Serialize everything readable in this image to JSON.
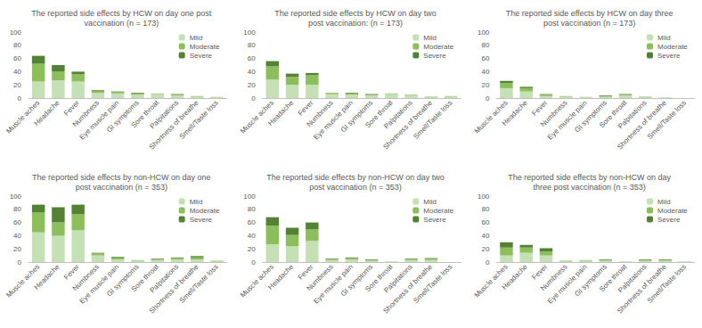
{
  "chart_data": [
    {
      "type": "bar",
      "title": "The reported side effects by HCW on day one post\nvaccination (n = 173)",
      "categories": [
        "Muscle aches",
        "Headache",
        "Fever",
        "Numbness",
        "Eye muscle pain",
        "GI symptoms",
        "Sore throat",
        "Palpitations",
        "Shortness of breathe",
        "Smell/Taste loss"
      ],
      "series": [
        {
          "name": "Mild",
          "color": "#c5e0b4",
          "values": [
            25,
            27,
            25,
            8,
            7,
            5,
            6,
            4,
            2,
            2
          ]
        },
        {
          "name": "Moderate",
          "color": "#8cbf5c",
          "values": [
            27,
            13,
            11,
            3,
            2,
            2,
            1,
            1,
            1,
            0
          ]
        },
        {
          "name": "Severe",
          "color": "#548235",
          "values": [
            12,
            10,
            4,
            1,
            1,
            1,
            0,
            1,
            0,
            0
          ]
        }
      ],
      "ylim": [
        0,
        100
      ],
      "yticks": [
        0,
        20,
        40,
        60,
        80,
        100
      ],
      "stacked": true,
      "grid": false,
      "legend": "upper right"
    },
    {
      "type": "bar",
      "title": "The reported side effects by HCW on day two\npost vaccination: (n = 173)",
      "categories": [
        "Muscle aches",
        "Headache",
        "Fever",
        "Numbness",
        "Eye muscle pain",
        "GI symptoms",
        "Sore throat",
        "Palpitations",
        "Shortness of breathe",
        "Smell/Taste loss"
      ],
      "series": [
        {
          "name": "Mild",
          "color": "#c5e0b4",
          "values": [
            28,
            20,
            20,
            6,
            5,
            4,
            6,
            4,
            1,
            2
          ]
        },
        {
          "name": "Moderate",
          "color": "#8cbf5c",
          "values": [
            20,
            12,
            15,
            2,
            2,
            1,
            1,
            1,
            1,
            1
          ]
        },
        {
          "name": "Severe",
          "color": "#548235",
          "values": [
            8,
            5,
            3,
            0,
            1,
            1,
            0,
            0,
            0,
            0
          ]
        }
      ],
      "ylim": [
        0,
        100
      ],
      "yticks": [
        0,
        20,
        40,
        60,
        80,
        100
      ],
      "stacked": true,
      "grid": false,
      "legend": "upper right"
    },
    {
      "type": "bar",
      "title": "The reported side effects by HCW on day three\npost vaccination (n = 173)",
      "categories": [
        "Muscle aches",
        "Headache",
        "Fever",
        "Numbness",
        "Eye muscle pain",
        "GI symptoms",
        "Sore throat",
        "Palpitations",
        "Shortness of breathe",
        "Smell/Taste loss"
      ],
      "series": [
        {
          "name": "Mild",
          "color": "#c5e0b4",
          "values": [
            15,
            10,
            3,
            2,
            2,
            2,
            4,
            1,
            1,
            0
          ]
        },
        {
          "name": "Moderate",
          "color": "#8cbf5c",
          "values": [
            8,
            5,
            2,
            1,
            0,
            1,
            1,
            1,
            0,
            0
          ]
        },
        {
          "name": "Severe",
          "color": "#548235",
          "values": [
            3,
            2,
            1,
            0,
            0,
            1,
            1,
            0,
            0,
            0
          ]
        }
      ],
      "ylim": [
        0,
        100
      ],
      "yticks": [
        0,
        20,
        40,
        60,
        80,
        100
      ],
      "stacked": true,
      "grid": false,
      "legend": "upper right"
    },
    {
      "type": "bar",
      "title": "The reported side effects by non-HCW on day one\npost vaccination (n = 353)",
      "categories": [
        "Muscle aches",
        "Headache",
        "Fever",
        "Numbness",
        "Eye muscle pain",
        "GI symptoms",
        "Sore throat",
        "Palpitations",
        "Shortness of breathe",
        "Smell/Taste loss"
      ],
      "series": [
        {
          "name": "Mild",
          "color": "#c5e0b4",
          "values": [
            45,
            40,
            48,
            10,
            4,
            2,
            3,
            4,
            4,
            1
          ]
        },
        {
          "name": "Moderate",
          "color": "#8cbf5c",
          "values": [
            30,
            20,
            25,
            3,
            3,
            1,
            1,
            2,
            3,
            1
          ]
        },
        {
          "name": "Severe",
          "color": "#548235",
          "values": [
            12,
            23,
            14,
            1,
            1,
            0,
            1,
            1,
            2,
            0
          ]
        }
      ],
      "ylim": [
        0,
        100
      ],
      "yticks": [
        0,
        20,
        40,
        60,
        80,
        100
      ],
      "stacked": true,
      "grid": false,
      "legend": "upper right"
    },
    {
      "type": "bar",
      "title": "The reported side effects by non-HCW on day two\npost vaccination (n = 353)",
      "categories": [
        "Muscle aches",
        "Headache",
        "Fever",
        "Numbness",
        "Eye muscle pain",
        "GI symptoms",
        "Sore throat",
        "Palpitations",
        "Shortness of breathe",
        "Smell/Taste loss"
      ],
      "series": [
        {
          "name": "Mild",
          "color": "#c5e0b4",
          "values": [
            27,
            24,
            32,
            3,
            4,
            2,
            1,
            3,
            3,
            0
          ]
        },
        {
          "name": "Moderate",
          "color": "#8cbf5c",
          "values": [
            28,
            17,
            18,
            1,
            2,
            1,
            0,
            1,
            2,
            0
          ]
        },
        {
          "name": "Severe",
          "color": "#548235",
          "values": [
            13,
            11,
            10,
            1,
            1,
            1,
            0,
            1,
            1,
            0
          ]
        }
      ],
      "ylim": [
        0,
        100
      ],
      "yticks": [
        0,
        20,
        40,
        60,
        80,
        100
      ],
      "stacked": true,
      "grid": false,
      "legend": "upper right"
    },
    {
      "type": "bar",
      "title": "The reported side effects by non-HCW on day\nthree post vaccination (n = 353)",
      "categories": [
        "Muscle aches",
        "Headache",
        "Fever",
        "Numbness",
        "Eye muscle pain",
        "GI symptoms",
        "Sore throat",
        "Palpitations",
        "Shortness of breathe",
        "Smell/Taste loss"
      ],
      "series": [
        {
          "name": "Mild",
          "color": "#c5e0b4",
          "values": [
            10,
            14,
            10,
            1,
            2,
            2,
            1,
            2,
            2,
            1
          ]
        },
        {
          "name": "Moderate",
          "color": "#8cbf5c",
          "values": [
            12,
            8,
            6,
            1,
            1,
            1,
            0,
            1,
            1,
            0
          ]
        },
        {
          "name": "Severe",
          "color": "#548235",
          "values": [
            8,
            4,
            5,
            0,
            0,
            1,
            0,
            1,
            1,
            0
          ]
        }
      ],
      "ylim": [
        0,
        100
      ],
      "yticks": [
        0,
        20,
        40,
        60,
        80,
        100
      ],
      "stacked": true,
      "grid": false,
      "legend": "upper right"
    }
  ]
}
